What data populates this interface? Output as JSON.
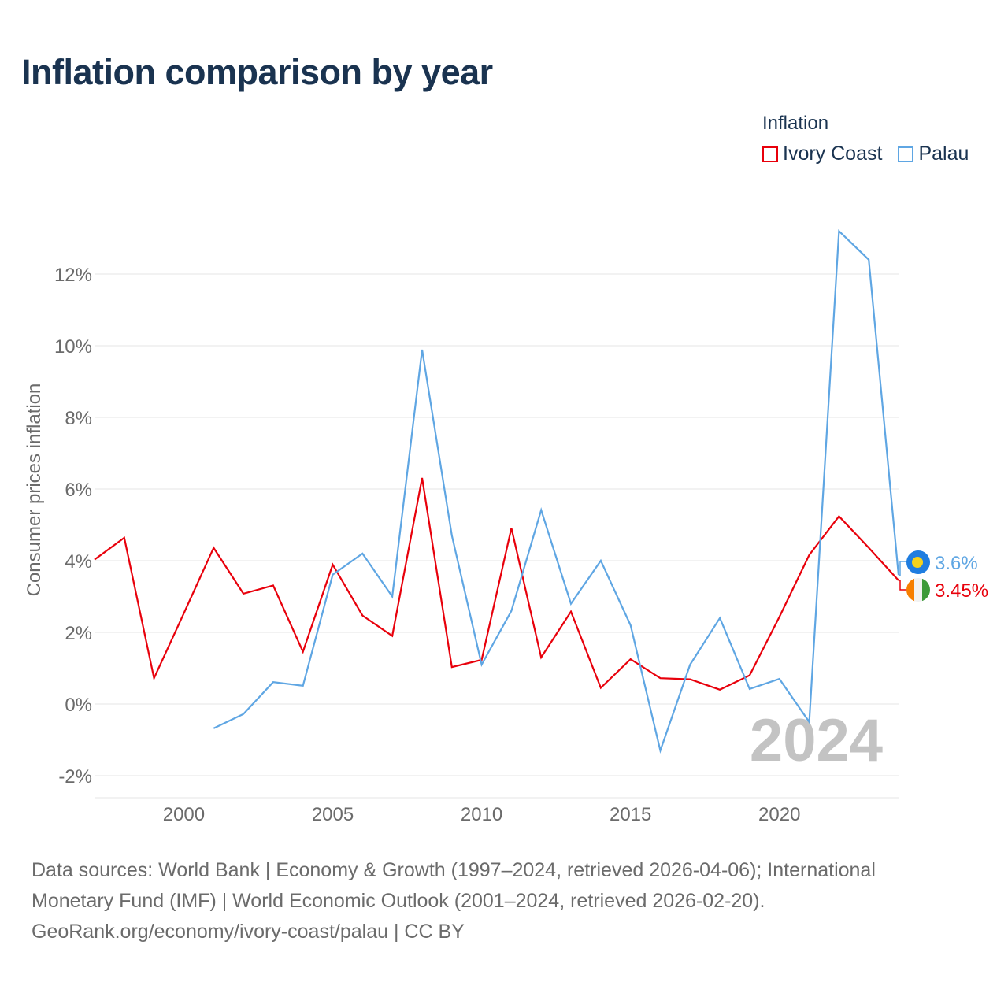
{
  "chart_data": {
    "type": "line",
    "title": "Inflation comparison by year",
    "xlabel": "",
    "ylabel": "Consumer prices inflation",
    "legend_title": "Inflation",
    "legend_position": "top-right",
    "xlim": [
      1997,
      2024
    ],
    "ylim": [
      -2.2,
      13.5
    ],
    "x_ticks": [
      2000,
      2005,
      2010,
      2015,
      2020
    ],
    "y_ticks": [
      -2,
      0,
      2,
      4,
      6,
      8,
      10,
      12
    ],
    "y_tick_labels": [
      "-2%",
      "0%",
      "2%",
      "4%",
      "6%",
      "8%",
      "10%",
      "12%"
    ],
    "grid": "horizontal",
    "watermark": "2024",
    "series": [
      {
        "name": "Ivory Coast",
        "color": "#e8000b",
        "end_label": "3.45%",
        "end_icon": "ivory-coast-flag-icon",
        "x": [
          1997,
          1998,
          1999,
          2000,
          2001,
          2002,
          2003,
          2004,
          2005,
          2006,
          2007,
          2008,
          2009,
          2010,
          2011,
          2012,
          2013,
          2014,
          2015,
          2016,
          2017,
          2018,
          2019,
          2020,
          2021,
          2022,
          2023,
          2024
        ],
        "values": [
          4.03,
          4.64,
          0.72,
          2.53,
          4.36,
          3.08,
          3.31,
          1.46,
          3.89,
          2.47,
          1.9,
          6.31,
          1.03,
          1.23,
          4.91,
          1.3,
          2.58,
          0.45,
          1.25,
          0.72,
          0.69,
          0.4,
          0.8,
          2.43,
          4.16,
          5.24,
          4.36,
          3.45
        ]
      },
      {
        "name": "Palau",
        "color": "#5fa6e3",
        "end_label": "3.6%",
        "end_icon": "palau-flag-icon",
        "x": [
          2001,
          2002,
          2003,
          2004,
          2005,
          2006,
          2007,
          2008,
          2009,
          2010,
          2011,
          2012,
          2013,
          2014,
          2015,
          2016,
          2017,
          2018,
          2019,
          2020,
          2021,
          2022,
          2023,
          2024
        ],
        "values": [
          -0.68,
          -0.28,
          0.61,
          0.51,
          3.61,
          4.2,
          3.0,
          9.89,
          4.7,
          1.1,
          2.6,
          5.41,
          2.8,
          4.0,
          2.2,
          -1.3,
          1.1,
          2.4,
          0.42,
          0.7,
          -0.5,
          13.2,
          12.4,
          3.6
        ]
      }
    ]
  },
  "sources": {
    "line1": "Data sources: World Bank | Economy & Growth (1997–2024, retrieved 2026-04-06); International",
    "line2": "Monetary Fund (IMF) | World Economic Outlook (2001–2024, retrieved 2026-02-20).",
    "line3": "GeoRank.org/economy/ivory-coast/palau | CC BY"
  }
}
